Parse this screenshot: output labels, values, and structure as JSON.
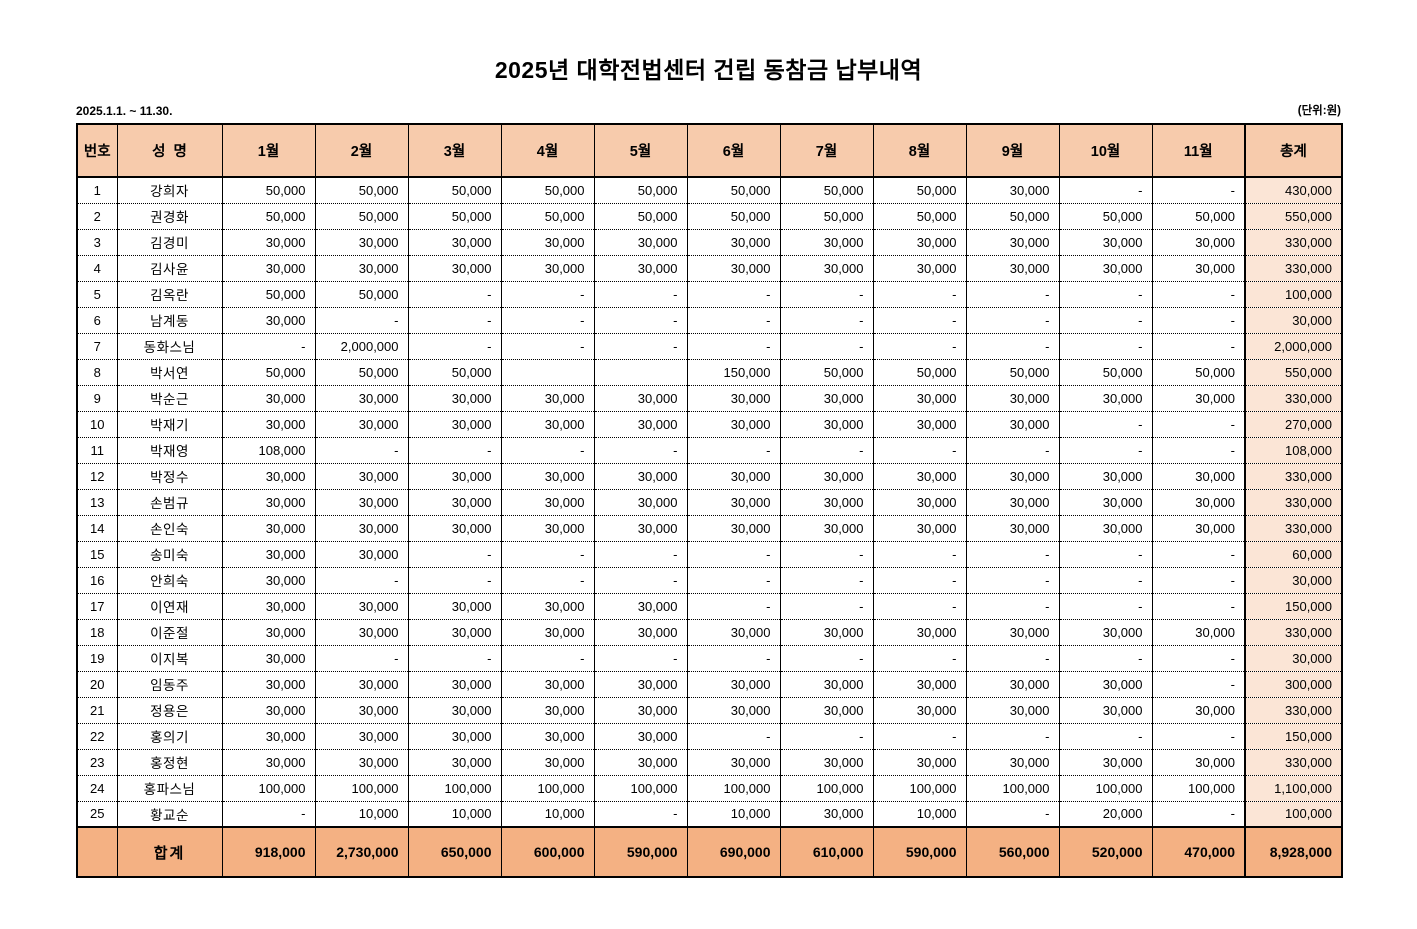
{
  "title": "2025년 대학전법센터 건립 동참금 납부내역",
  "period": "2025.1.1. ~ 11.30.",
  "unit_note": "(단위:원)",
  "colors": {
    "header_bg": "#F7CBAC",
    "footer_bg": "#F4B183",
    "total_col_bg": "#FBE5D6",
    "border": "#000000"
  },
  "table": {
    "headers": [
      "번호",
      "성  명",
      "1월",
      "2월",
      "3월",
      "4월",
      "5월",
      "6월",
      "7월",
      "8월",
      "9월",
      "10월",
      "11월",
      "총계"
    ],
    "rows": [
      {
        "no": "1",
        "name": "강희자",
        "months": [
          "50,000",
          "50,000",
          "50,000",
          "50,000",
          "50,000",
          "50,000",
          "50,000",
          "50,000",
          "30,000",
          "-",
          "-"
        ],
        "total": "430,000"
      },
      {
        "no": "2",
        "name": "권경화",
        "months": [
          "50,000",
          "50,000",
          "50,000",
          "50,000",
          "50,000",
          "50,000",
          "50,000",
          "50,000",
          "50,000",
          "50,000",
          "50,000"
        ],
        "total": "550,000"
      },
      {
        "no": "3",
        "name": "김경미",
        "months": [
          "30,000",
          "30,000",
          "30,000",
          "30,000",
          "30,000",
          "30,000",
          "30,000",
          "30,000",
          "30,000",
          "30,000",
          "30,000"
        ],
        "total": "330,000"
      },
      {
        "no": "4",
        "name": "김사윤",
        "months": [
          "30,000",
          "30,000",
          "30,000",
          "30,000",
          "30,000",
          "30,000",
          "30,000",
          "30,000",
          "30,000",
          "30,000",
          "30,000"
        ],
        "total": "330,000"
      },
      {
        "no": "5",
        "name": "김옥란",
        "months": [
          "50,000",
          "50,000",
          "-",
          "-",
          "-",
          "-",
          "-",
          "-",
          "-",
          "-",
          "-"
        ],
        "total": "100,000"
      },
      {
        "no": "6",
        "name": "남계동",
        "months": [
          "30,000",
          "-",
          "-",
          "-",
          "-",
          "-",
          "-",
          "-",
          "-",
          "-",
          "-"
        ],
        "total": "30,000"
      },
      {
        "no": "7",
        "name": "동화스님",
        "months": [
          "-",
          "2,000,000",
          "-",
          "-",
          "-",
          "-",
          "-",
          "-",
          "-",
          "-",
          "-"
        ],
        "total": "2,000,000"
      },
      {
        "no": "8",
        "name": "박서연",
        "months": [
          "50,000",
          "50,000",
          "50,000",
          "",
          "",
          "150,000",
          "50,000",
          "50,000",
          "50,000",
          "50,000",
          "50,000"
        ],
        "total": "550,000"
      },
      {
        "no": "9",
        "name": "박순근",
        "months": [
          "30,000",
          "30,000",
          "30,000",
          "30,000",
          "30,000",
          "30,000",
          "30,000",
          "30,000",
          "30,000",
          "30,000",
          "30,000"
        ],
        "total": "330,000"
      },
      {
        "no": "10",
        "name": "박재기",
        "months": [
          "30,000",
          "30,000",
          "30,000",
          "30,000",
          "30,000",
          "30,000",
          "30,000",
          "30,000",
          "30,000",
          "-",
          "-"
        ],
        "total": "270,000"
      },
      {
        "no": "11",
        "name": "박재영",
        "months": [
          "108,000",
          "-",
          "-",
          "-",
          "-",
          "-",
          "-",
          "-",
          "-",
          "-",
          "-"
        ],
        "total": "108,000"
      },
      {
        "no": "12",
        "name": "박정수",
        "months": [
          "30,000",
          "30,000",
          "30,000",
          "30,000",
          "30,000",
          "30,000",
          "30,000",
          "30,000",
          "30,000",
          "30,000",
          "30,000"
        ],
        "total": "330,000"
      },
      {
        "no": "13",
        "name": "손범규",
        "months": [
          "30,000",
          "30,000",
          "30,000",
          "30,000",
          "30,000",
          "30,000",
          "30,000",
          "30,000",
          "30,000",
          "30,000",
          "30,000"
        ],
        "total": "330,000"
      },
      {
        "no": "14",
        "name": "손인숙",
        "months": [
          "30,000",
          "30,000",
          "30,000",
          "30,000",
          "30,000",
          "30,000",
          "30,000",
          "30,000",
          "30,000",
          "30,000",
          "30,000"
        ],
        "total": "330,000"
      },
      {
        "no": "15",
        "name": "송미숙",
        "months": [
          "30,000",
          "30,000",
          "-",
          "-",
          "-",
          "-",
          "-",
          "-",
          "-",
          "-",
          "-"
        ],
        "total": "60,000"
      },
      {
        "no": "16",
        "name": "안희숙",
        "months": [
          "30,000",
          "-",
          "-",
          "-",
          "-",
          "-",
          "-",
          "-",
          "-",
          "-",
          "-"
        ],
        "total": "30,000"
      },
      {
        "no": "17",
        "name": "이연재",
        "months": [
          "30,000",
          "30,000",
          "30,000",
          "30,000",
          "30,000",
          "-",
          "-",
          "-",
          "-",
          "-",
          "-"
        ],
        "total": "150,000"
      },
      {
        "no": "18",
        "name": "이준절",
        "months": [
          "30,000",
          "30,000",
          "30,000",
          "30,000",
          "30,000",
          "30,000",
          "30,000",
          "30,000",
          "30,000",
          "30,000",
          "30,000"
        ],
        "total": "330,000"
      },
      {
        "no": "19",
        "name": "이지복",
        "months": [
          "30,000",
          "-",
          "-",
          "-",
          "-",
          "-",
          "-",
          "-",
          "-",
          "-",
          "-"
        ],
        "total": "30,000"
      },
      {
        "no": "20",
        "name": "임동주",
        "months": [
          "30,000",
          "30,000",
          "30,000",
          "30,000",
          "30,000",
          "30,000",
          "30,000",
          "30,000",
          "30,000",
          "30,000",
          "-"
        ],
        "total": "300,000"
      },
      {
        "no": "21",
        "name": "정용은",
        "months": [
          "30,000",
          "30,000",
          "30,000",
          "30,000",
          "30,000",
          "30,000",
          "30,000",
          "30,000",
          "30,000",
          "30,000",
          "30,000"
        ],
        "total": "330,000"
      },
      {
        "no": "22",
        "name": "홍의기",
        "months": [
          "30,000",
          "30,000",
          "30,000",
          "30,000",
          "30,000",
          "-",
          "-",
          "-",
          "-",
          "-",
          "-"
        ],
        "total": "150,000"
      },
      {
        "no": "23",
        "name": "홍정현",
        "months": [
          "30,000",
          "30,000",
          "30,000",
          "30,000",
          "30,000",
          "30,000",
          "30,000",
          "30,000",
          "30,000",
          "30,000",
          "30,000"
        ],
        "total": "330,000"
      },
      {
        "no": "24",
        "name": "홍파스님",
        "months": [
          "100,000",
          "100,000",
          "100,000",
          "100,000",
          "100,000",
          "100,000",
          "100,000",
          "100,000",
          "100,000",
          "100,000",
          "100,000"
        ],
        "total": "1,100,000"
      },
      {
        "no": "25",
        "name": "황교순",
        "months": [
          "-",
          "10,000",
          "10,000",
          "10,000",
          "-",
          "10,000",
          "30,000",
          "10,000",
          "-",
          "20,000",
          "-"
        ],
        "total": "100,000"
      }
    ],
    "footer": {
      "label": "합계",
      "months": [
        "918,000",
        "2,730,000",
        "650,000",
        "600,000",
        "590,000",
        "690,000",
        "610,000",
        "590,000",
        "560,000",
        "520,000",
        "470,000"
      ],
      "total": "8,928,000"
    }
  }
}
